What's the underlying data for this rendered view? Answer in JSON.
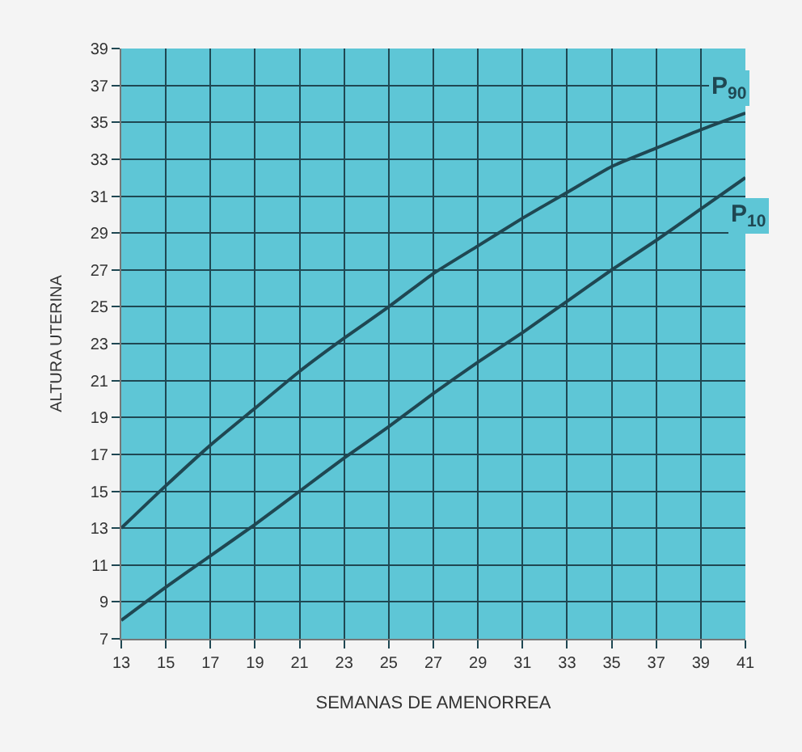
{
  "chart_data": {
    "type": "line",
    "xlabel": "SEMANAS DE AMENORREA",
    "ylabel": "ALTURA UTERINA",
    "x": [
      13,
      15,
      17,
      19,
      21,
      23,
      25,
      27,
      29,
      31,
      33,
      35,
      37,
      39,
      41
    ],
    "series": [
      {
        "name": "P$_{90}$",
        "color": "#1f4752",
        "values": [
          13,
          15.3,
          17.5,
          19.5,
          21.5,
          23.3,
          25,
          26.8,
          28.3,
          29.8,
          31.2,
          32.6,
          33.6,
          34.6,
          35.5
        ]
      },
      {
        "name": "P$_{10}$",
        "color": "#1f4752",
        "values": [
          8,
          9.8,
          11.5,
          13.2,
          15,
          16.8,
          18.5,
          20.3,
          22,
          23.6,
          25.3,
          27,
          28.6,
          30.3,
          32
        ]
      }
    ],
    "xlim": [
      13,
      41
    ],
    "ylim": [
      7,
      39
    ],
    "xticks": [
      13,
      15,
      17,
      19,
      21,
      23,
      25,
      27,
      29,
      31,
      33,
      35,
      37,
      39,
      41
    ],
    "yticks": [
      7,
      9,
      11,
      13,
      15,
      17,
      19,
      21,
      23,
      25,
      27,
      29,
      31,
      33,
      35,
      37,
      39
    ],
    "grid": true,
    "legend": false,
    "marker": "none",
    "line_style": "solid"
  }
}
